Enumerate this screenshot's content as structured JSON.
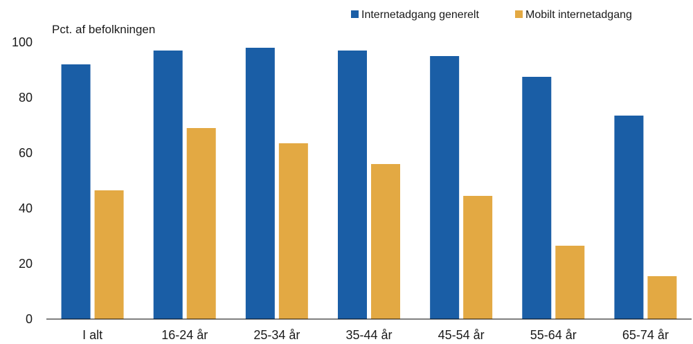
{
  "chart_data": {
    "type": "bar",
    "ylabel": "Pct. af befolkningen",
    "categories": [
      "I alt",
      "16-24 år",
      "25-34 år",
      "35-44 år",
      "45-54 år",
      "55-64 år",
      "65-74 år"
    ],
    "series": [
      {
        "name": "Internetadgang generelt",
        "color": "#1a5ea6",
        "values": [
          92,
          97,
          98,
          97,
          95,
          87.5,
          73.5
        ]
      },
      {
        "name": "Mobilt internetadgang",
        "color": "#e3a943",
        "values": [
          46.5,
          69,
          63.5,
          56,
          44.5,
          26.5,
          15.5
        ]
      }
    ],
    "ylim": [
      0,
      100
    ],
    "yticks": [
      0,
      20,
      40,
      60,
      80,
      100
    ],
    "legend_position": "top-right",
    "grid": false
  }
}
